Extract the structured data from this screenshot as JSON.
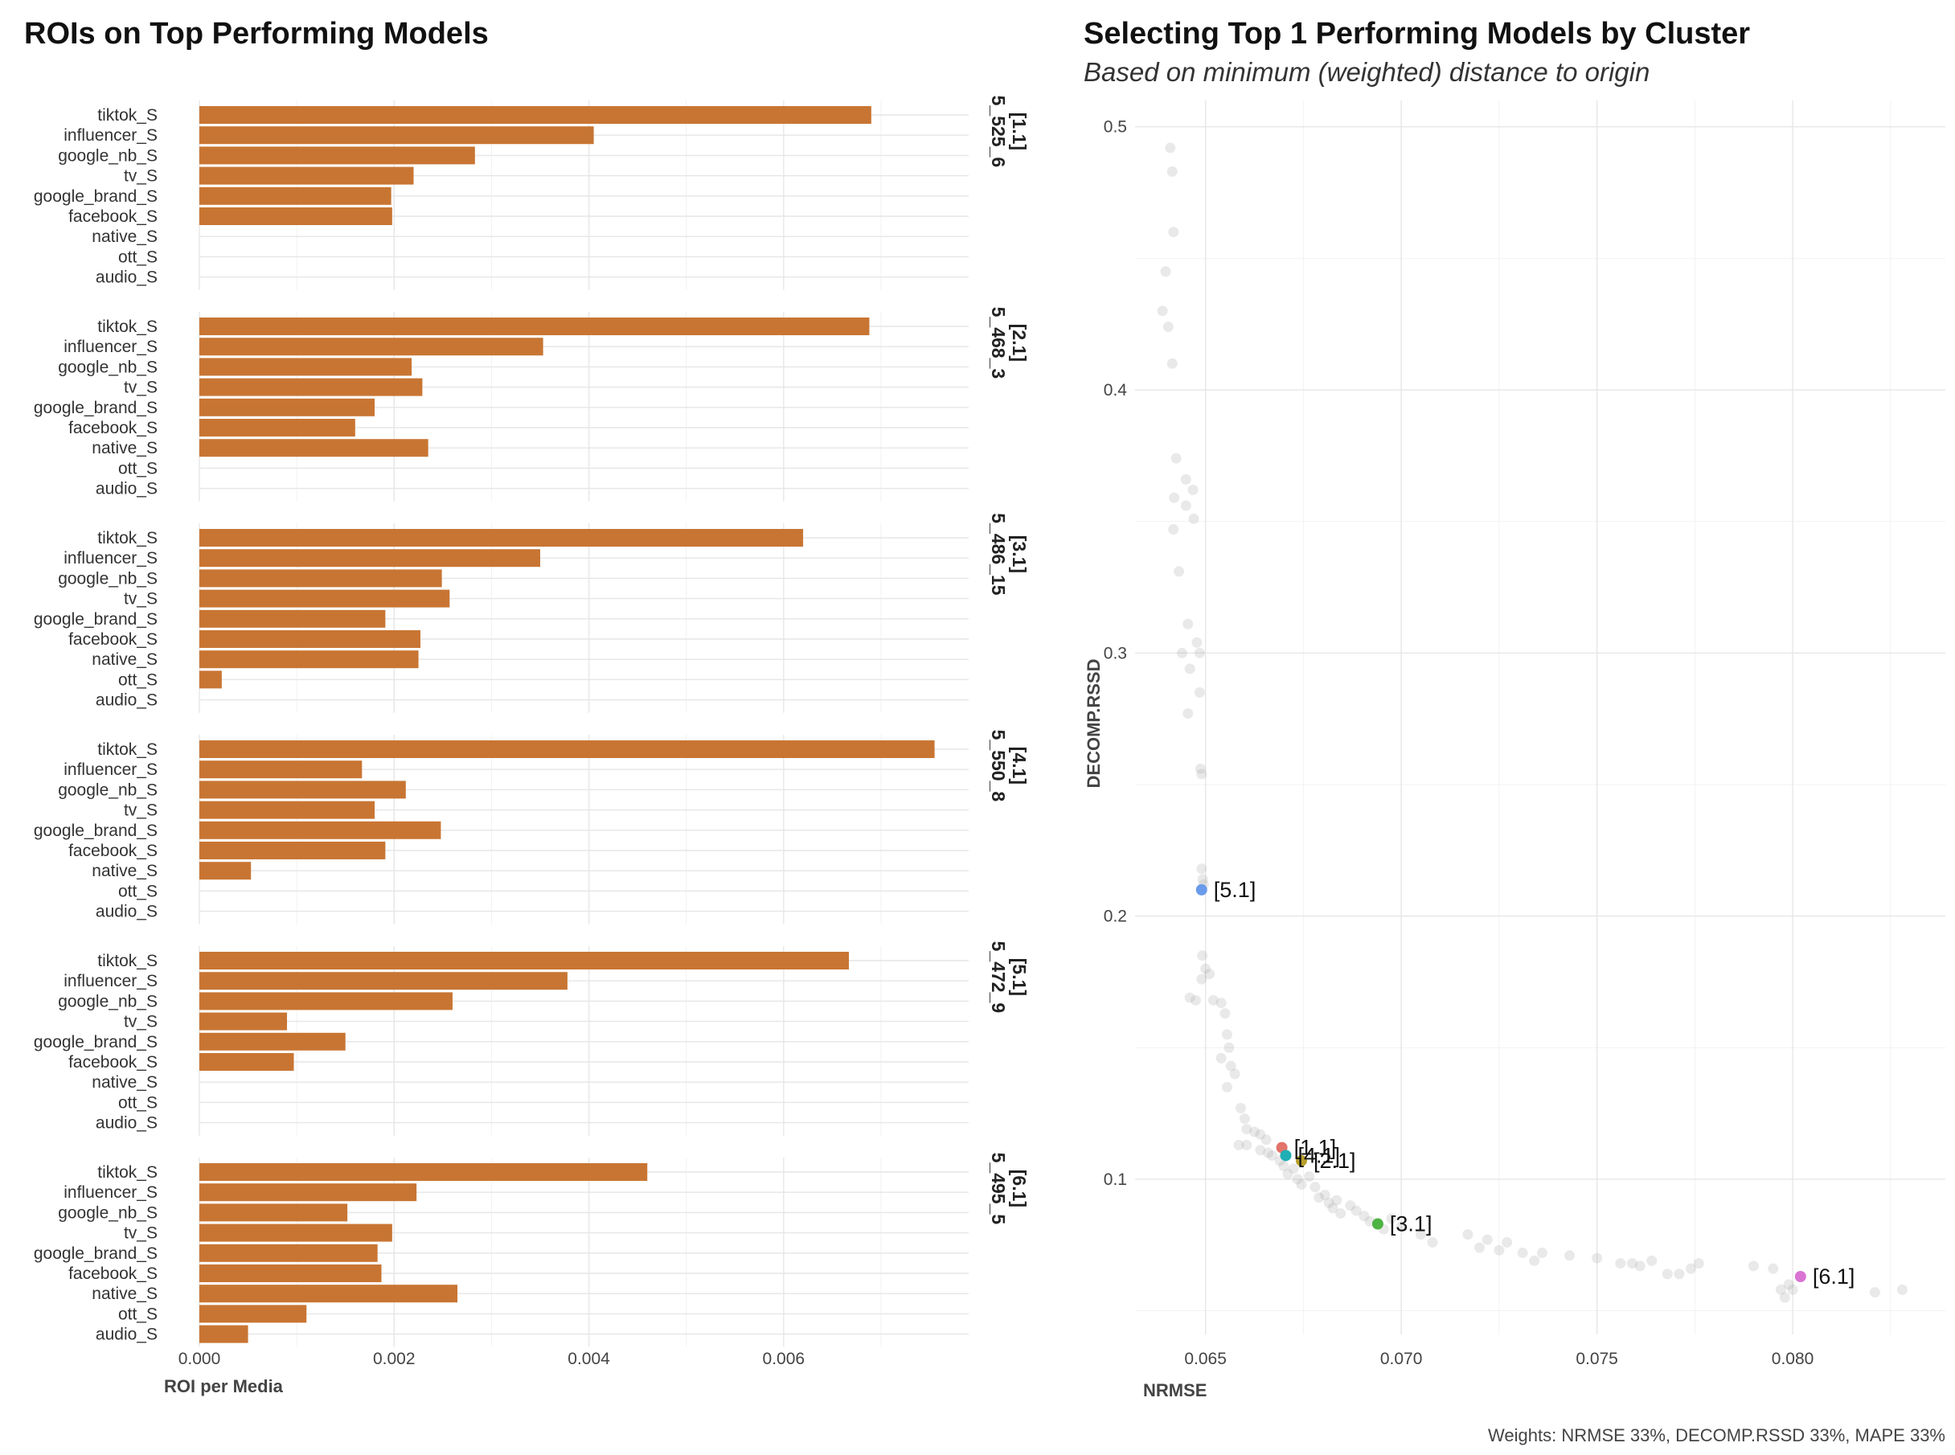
{
  "chart_data": [
    {
      "type": "bar",
      "orientation": "horizontal",
      "title": "ROIs on Top Performing Models",
      "xlabel": "ROI per Media",
      "ylabel": "",
      "xlim": [
        0,
        0.0079
      ],
      "x_ticks": [
        "0.000",
        "0.002",
        "0.004",
        "0.006"
      ],
      "categories": [
        "tiktok_S",
        "influencer_S",
        "google_nb_S",
        "tv_S",
        "google_brand_S",
        "facebook_S",
        "native_S",
        "ott_S",
        "audio_S"
      ],
      "bar_color": "#C87533",
      "panels": [
        {
          "label": "[1.1]",
          "id": "5_525_6",
          "values": [
            0.0069,
            0.00405,
            0.00283,
            0.0022,
            0.00197,
            0.00198,
            0,
            0,
            0
          ]
        },
        {
          "label": "[2.1]",
          "id": "5_468_3",
          "values": [
            0.00688,
            0.00353,
            0.00218,
            0.00229,
            0.0018,
            0.0016,
            0.00235,
            0,
            0
          ]
        },
        {
          "label": "[3.1]",
          "id": "5_486_15",
          "values": [
            0.0062,
            0.0035,
            0.00249,
            0.00257,
            0.00191,
            0.00227,
            0.00225,
            0.00023,
            0
          ]
        },
        {
          "label": "[4.1]",
          "id": "5_550_8",
          "values": [
            0.00755,
            0.00167,
            0.00212,
            0.0018,
            0.00248,
            0.00191,
            0.00053,
            0,
            0
          ]
        },
        {
          "label": "[5.1]",
          "id": "5_472_9",
          "values": [
            0.00667,
            0.00378,
            0.0026,
            0.0009,
            0.0015,
            0.00097,
            0,
            0,
            0
          ]
        },
        {
          "label": "[6.1]",
          "id": "5_495_5",
          "values": [
            0.0046,
            0.00223,
            0.00152,
            0.00198,
            0.00183,
            0.00187,
            0.00265,
            0.0011,
            0.0005
          ]
        }
      ]
    },
    {
      "type": "scatter",
      "title": "Selecting Top 1 Performing Models by Cluster",
      "subtitle": "Based on minimum (weighted) distance to origin",
      "xlabel": "NRMSE",
      "ylabel": "DECOMP.RSSD",
      "xlim": [
        0.0632,
        0.0839
      ],
      "ylim": [
        0.041,
        0.51
      ],
      "x_ticks": [
        "0.065",
        "0.070",
        "0.075",
        "0.080"
      ],
      "y_ticks": [
        "0.1",
        "0.2",
        "0.3",
        "0.4",
        "0.5"
      ],
      "caption": "Weights: NRMSE 33%, DECOMP.RSSD 33%, MAPE 33%",
      "background_points": [
        [
          0.0641,
          0.492
        ],
        [
          0.06415,
          0.483
        ],
        [
          0.06418,
          0.46
        ],
        [
          0.06398,
          0.445
        ],
        [
          0.0639,
          0.43
        ],
        [
          0.06405,
          0.424
        ],
        [
          0.06415,
          0.41
        ],
        [
          0.06425,
          0.374
        ],
        [
          0.0645,
          0.366
        ],
        [
          0.06468,
          0.362
        ],
        [
          0.0642,
          0.359
        ],
        [
          0.0645,
          0.356
        ],
        [
          0.0647,
          0.351
        ],
        [
          0.06418,
          0.347
        ],
        [
          0.06432,
          0.331
        ],
        [
          0.06455,
          0.311
        ],
        [
          0.06478,
          0.304
        ],
        [
          0.0644,
          0.3
        ],
        [
          0.06485,
          0.3
        ],
        [
          0.0646,
          0.294
        ],
        [
          0.06485,
          0.285
        ],
        [
          0.06455,
          0.277
        ],
        [
          0.06487,
          0.256
        ],
        [
          0.0649,
          0.254
        ],
        [
          0.0649,
          0.218
        ],
        [
          0.06493,
          0.214
        ],
        [
          0.06495,
          0.212
        ],
        [
          0.06492,
          0.185
        ],
        [
          0.065,
          0.18
        ],
        [
          0.0651,
          0.178
        ],
        [
          0.0649,
          0.176
        ],
        [
          0.0646,
          0.169
        ],
        [
          0.06475,
          0.168
        ],
        [
          0.0652,
          0.168
        ],
        [
          0.0654,
          0.167
        ],
        [
          0.0655,
          0.163
        ],
        [
          0.06555,
          0.155
        ],
        [
          0.0656,
          0.15
        ],
        [
          0.0654,
          0.146
        ],
        [
          0.06565,
          0.143
        ],
        [
          0.06575,
          0.14
        ],
        [
          0.06555,
          0.135
        ],
        [
          0.0659,
          0.127
        ],
        [
          0.066,
          0.123
        ],
        [
          0.06605,
          0.119
        ],
        [
          0.06625,
          0.118
        ],
        [
          0.06585,
          0.113
        ],
        [
          0.06605,
          0.113
        ],
        [
          0.0664,
          0.117
        ],
        [
          0.06655,
          0.115
        ],
        [
          0.0664,
          0.111
        ],
        [
          0.0666,
          0.11
        ],
        [
          0.0667,
          0.109
        ],
        [
          0.0669,
          0.107
        ],
        [
          0.067,
          0.105
        ],
        [
          0.0671,
          0.102
        ],
        [
          0.06725,
          0.104
        ],
        [
          0.06735,
          0.1
        ],
        [
          0.06745,
          0.098
        ],
        [
          0.06765,
          0.101
        ],
        [
          0.0678,
          0.097
        ],
        [
          0.0679,
          0.093
        ],
        [
          0.06805,
          0.094
        ],
        [
          0.06815,
          0.091
        ],
        [
          0.06825,
          0.089
        ],
        [
          0.06835,
          0.092
        ],
        [
          0.06845,
          0.087
        ],
        [
          0.0687,
          0.09
        ],
        [
          0.06885,
          0.088
        ],
        [
          0.06905,
          0.086
        ],
        [
          0.0692,
          0.084
        ],
        [
          0.06955,
          0.081
        ],
        [
          0.06975,
          0.085
        ],
        [
          0.07,
          0.082
        ],
        [
          0.0705,
          0.079
        ],
        [
          0.0708,
          0.076
        ],
        [
          0.0717,
          0.079
        ],
        [
          0.072,
          0.074
        ],
        [
          0.0722,
          0.077
        ],
        [
          0.0725,
          0.073
        ],
        [
          0.0727,
          0.076
        ],
        [
          0.0731,
          0.072
        ],
        [
          0.0734,
          0.069
        ],
        [
          0.0736,
          0.072
        ],
        [
          0.0743,
          0.071
        ],
        [
          0.075,
          0.07
        ],
        [
          0.0756,
          0.068
        ],
        [
          0.0759,
          0.068
        ],
        [
          0.0761,
          0.067
        ],
        [
          0.0764,
          0.069
        ],
        [
          0.0768,
          0.064
        ],
        [
          0.0771,
          0.064
        ],
        [
          0.0774,
          0.066
        ],
        [
          0.0776,
          0.068
        ],
        [
          0.079,
          0.067
        ],
        [
          0.0795,
          0.066
        ],
        [
          0.0797,
          0.058
        ],
        [
          0.0798,
          0.055
        ],
        [
          0.0799,
          0.06
        ],
        [
          0.08,
          0.058
        ],
        [
          0.0821,
          0.057
        ],
        [
          0.0828,
          0.058
        ]
      ],
      "highlighted": [
        {
          "label": "[1.1]",
          "x": 0.06695,
          "y": 0.112,
          "color": "#E2736A"
        },
        {
          "label": "[2.1]",
          "x": 0.06745,
          "y": 0.107,
          "color": "#B8A02C"
        },
        {
          "label": "[3.1]",
          "x": 0.0694,
          "y": 0.083,
          "color": "#4DB343"
        },
        {
          "label": "[4.1]",
          "x": 0.06705,
          "y": 0.109,
          "color": "#1FAFB5"
        },
        {
          "label": "[5.1]",
          "x": 0.0649,
          "y": 0.21,
          "color": "#6A9AEB"
        },
        {
          "label": "[6.1]",
          "x": 0.0802,
          "y": 0.063,
          "color": "#D973D4"
        }
      ]
    }
  ]
}
